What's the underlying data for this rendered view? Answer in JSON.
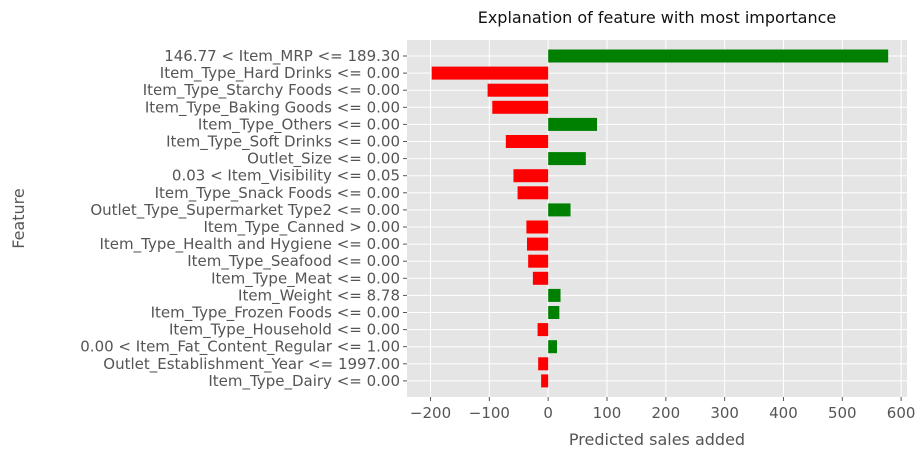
{
  "chart_data": {
    "type": "bar",
    "orientation": "horizontal",
    "title": "Explanation of feature with most importance",
    "xlabel": "Predicted sales added",
    "ylabel": "Feature",
    "xlim": [
      -240,
      610
    ],
    "xticks": [
      -200,
      -100,
      0,
      100,
      200,
      300,
      400,
      500,
      600
    ],
    "xtick_labels": [
      "−200",
      "−100",
      "0",
      "100",
      "200",
      "300",
      "400",
      "500",
      "600"
    ],
    "grid": true,
    "categories": [
      "146.77 < Item_MRP <= 189.30",
      "Item_Type_Hard Drinks <= 0.00",
      "Item_Type_Starchy Foods <= 0.00",
      "Item_Type_Baking Goods <= 0.00",
      "Item_Type_Others <= 0.00",
      "Item_Type_Soft Drinks <= 0.00",
      "Outlet_Size <= 0.00",
      "0.03 < Item_Visibility <= 0.05",
      "Item_Type_Snack Foods <= 0.00",
      "Outlet_Type_Supermarket Type2 <= 0.00",
      "Item_Type_Canned > 0.00",
      "Item_Type_Health and Hygiene <= 0.00",
      "Item_Type_Seafood <= 0.00",
      "Item_Type_Meat <= 0.00",
      "Item_Weight <= 8.78",
      "Item_Type_Frozen Foods <= 0.00",
      "Item_Type_Household <= 0.00",
      "0.00 < Item_Fat_Content_Regular <= 1.00",
      "Outlet_Establishment_Year <= 1997.00",
      "Item_Type_Dairy <= 0.00"
    ],
    "values": [
      578,
      -198,
      -103,
      -95,
      83,
      -72,
      64,
      -59,
      -52,
      38,
      -37,
      -36,
      -34,
      -26,
      21,
      19,
      -18,
      15,
      -17,
      -12
    ],
    "colors": {
      "positive": "#008000",
      "negative": "#ff0000"
    },
    "background": "#e5e5e5",
    "grid_color": "#ffffff"
  }
}
